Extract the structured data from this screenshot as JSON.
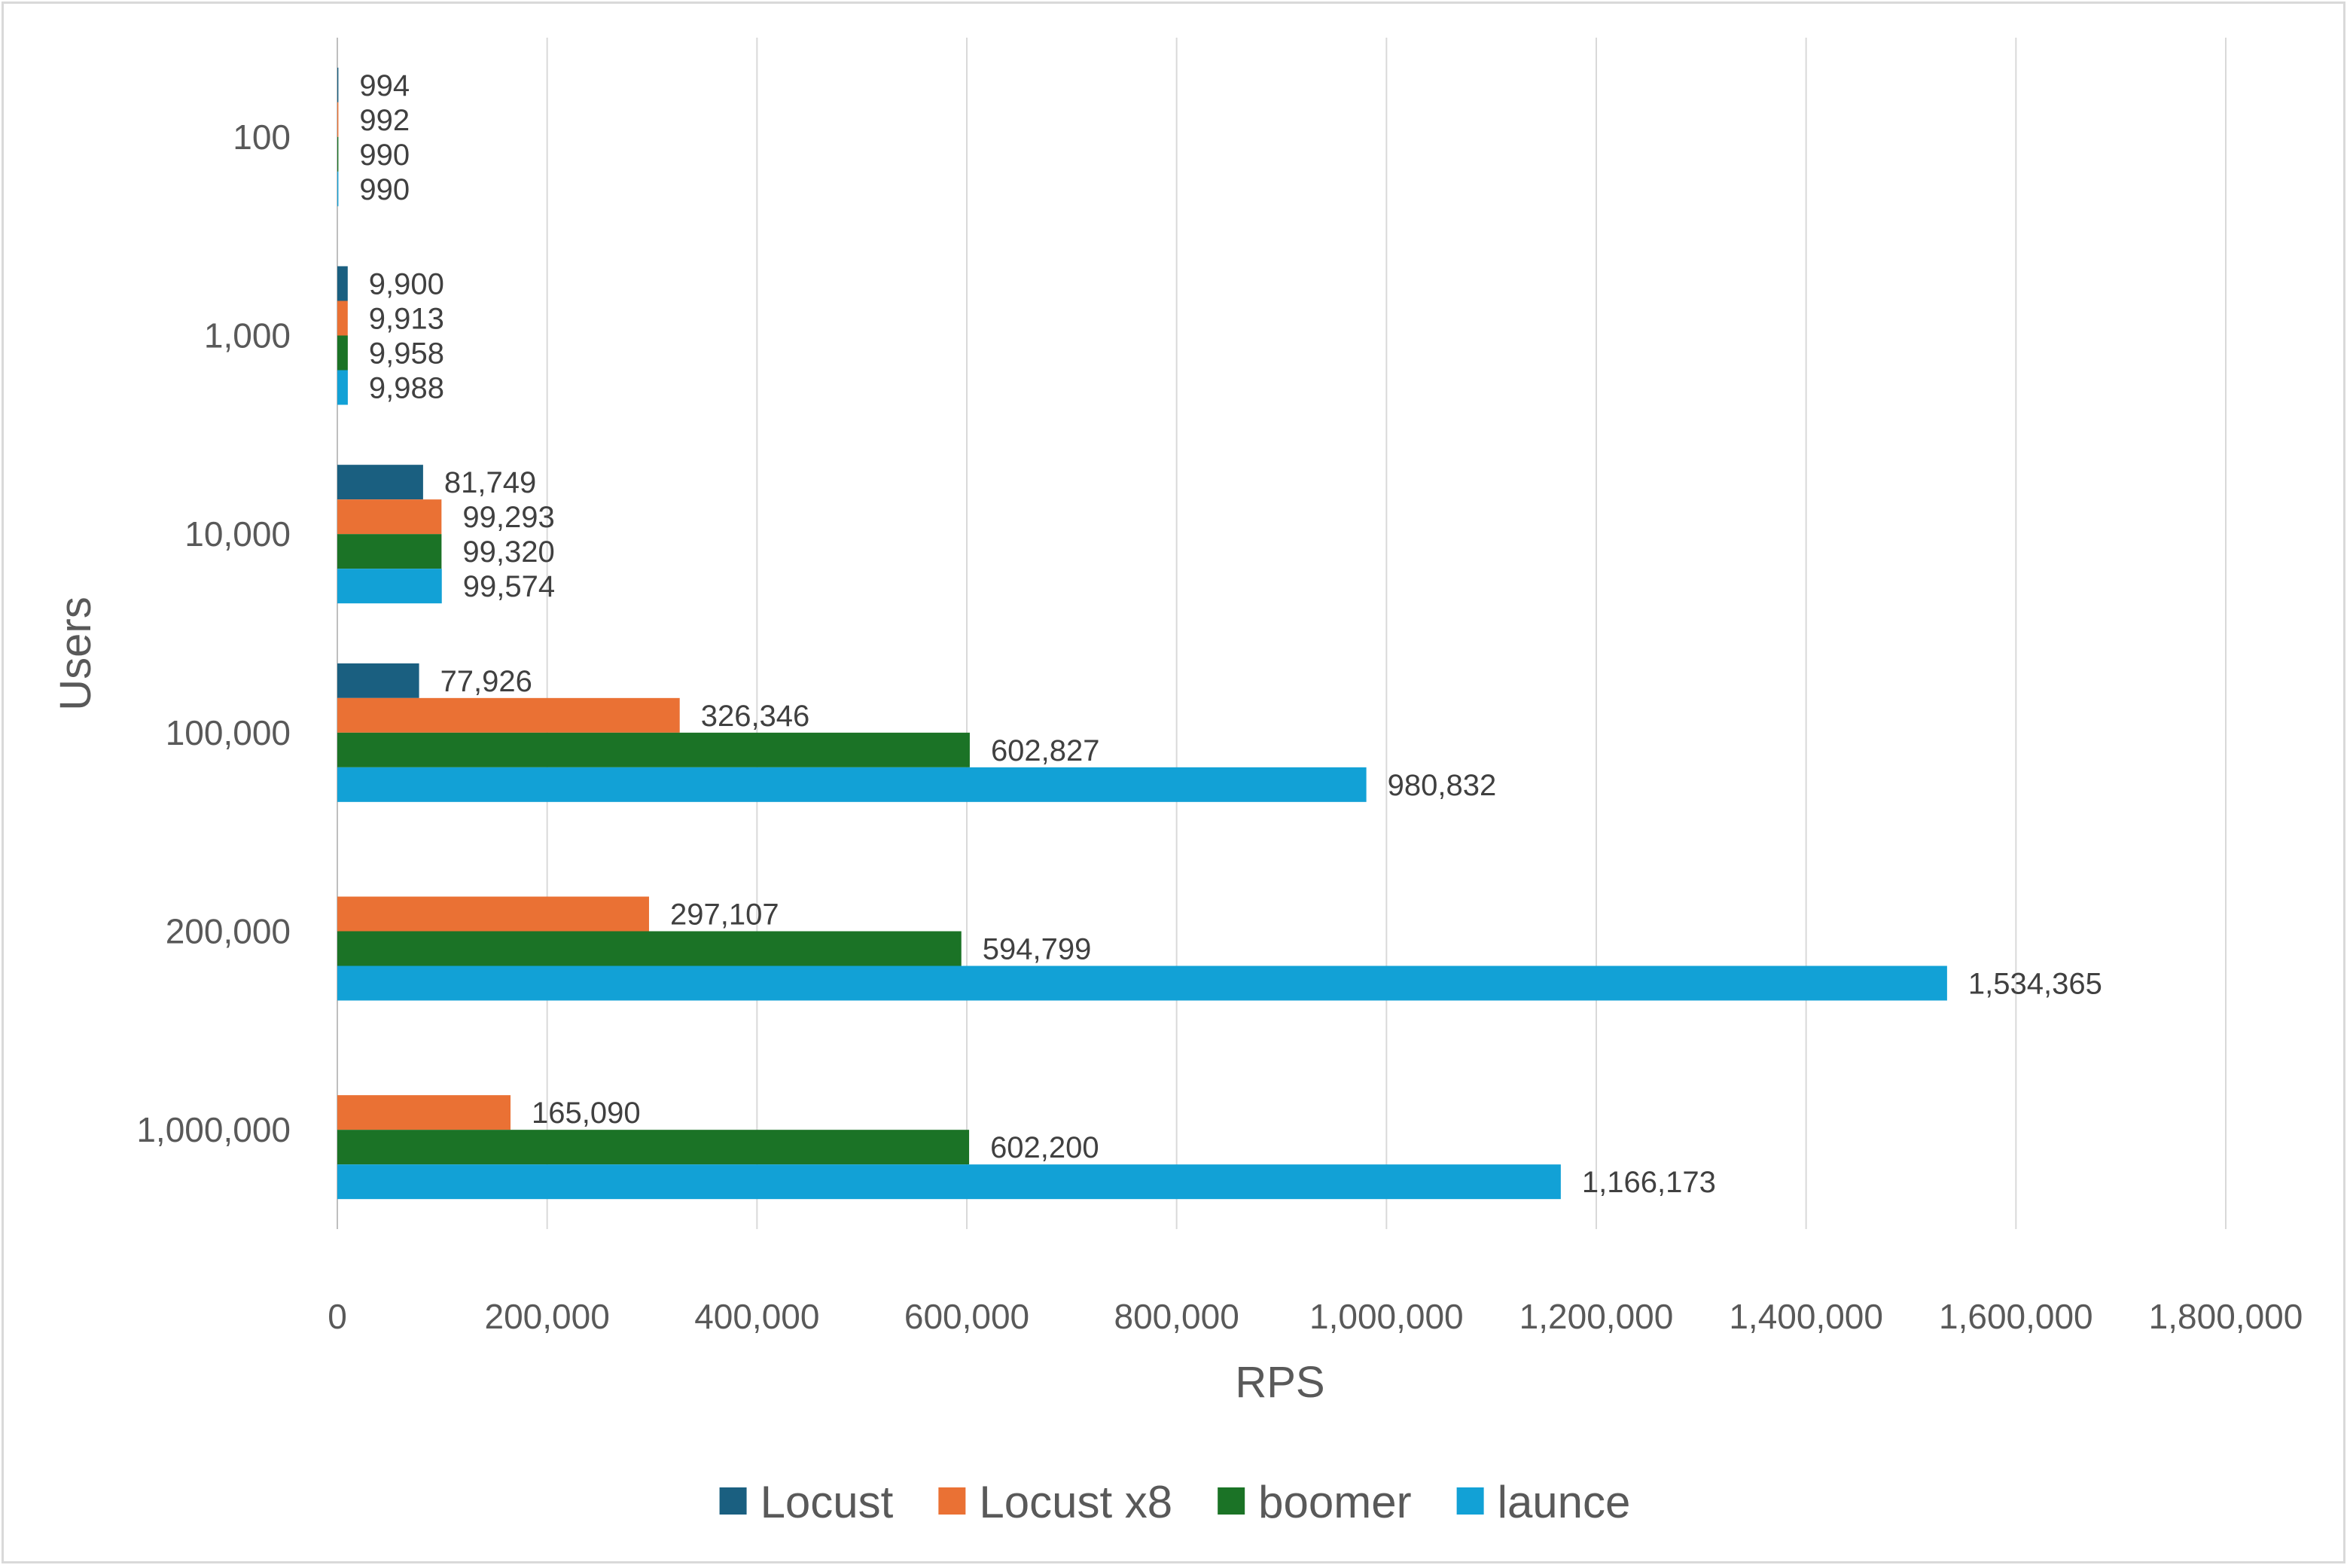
{
  "chart_data": {
    "type": "bar",
    "orientation": "horizontal",
    "title": "",
    "xlabel": "RPS",
    "ylabel": "Users",
    "xlim": [
      0,
      1800000
    ],
    "x_ticks": [
      0,
      200000,
      400000,
      600000,
      800000,
      1000000,
      1200000,
      1400000,
      1600000,
      1800000
    ],
    "x_tick_labels": [
      "0",
      "200,000",
      "400,000",
      "600,000",
      "800,000",
      "1,000,000",
      "1,200,000",
      "1,400,000",
      "1,600,000",
      "1,800,000"
    ],
    "grid": "vertical",
    "legend_position": "bottom",
    "categories": [
      "100",
      "1,000",
      "10,000",
      "100,000",
      "200,000",
      "1,000,000"
    ],
    "series": [
      {
        "name": "Locust",
        "color": "#1a5f80",
        "values": [
          994,
          9900,
          81749,
          77926,
          null,
          null
        ],
        "labels": [
          "994",
          "9,900",
          "81,749",
          "77,926",
          "",
          ""
        ]
      },
      {
        "name": "Locust x8",
        "color": "#ea7134",
        "values": [
          992,
          9913,
          99293,
          326346,
          297107,
          165090
        ],
        "labels": [
          "992",
          "9,913",
          "99,293",
          "326,346",
          "297,107",
          "165,090"
        ]
      },
      {
        "name": "boomer",
        "color": "#1b7326",
        "values": [
          990,
          9958,
          99320,
          602827,
          594799,
          602200
        ],
        "labels": [
          "990",
          "9,958",
          "99,320",
          "602,827",
          "594,799",
          "602,200"
        ]
      },
      {
        "name": "launce",
        "color": "#12a1d6",
        "values": [
          990,
          9988,
          99574,
          980832,
          1534365,
          1166173
        ],
        "labels": [
          "990",
          "9,988",
          "99,574",
          "980,832",
          "1,534,365",
          "1,166,173"
        ]
      }
    ]
  }
}
